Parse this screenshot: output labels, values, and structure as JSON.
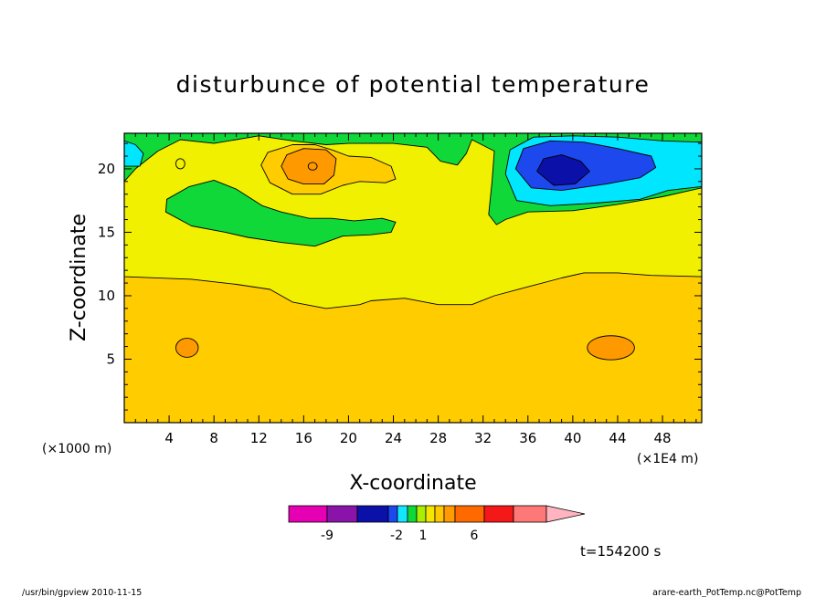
{
  "chart_data": {
    "type": "heatmap",
    "title": "disturbunce of potential temperature",
    "xlabel": "X-coordinate",
    "ylabel": "Z-coordinate",
    "x_unit_left": "(×1000 m)",
    "x_unit_right": "(×1E4 m)",
    "xlim": [
      0,
      51.5
    ],
    "ylim": [
      0,
      22.8
    ],
    "xticks": [
      4,
      8,
      12,
      16,
      20,
      24,
      28,
      32,
      36,
      40,
      44,
      48
    ],
    "yticks": [
      5,
      10,
      15,
      20
    ],
    "time_label": "t=154200 s",
    "colorbar": {
      "colors": [
        "#e600b4",
        "#8a14aa",
        "#0a10a8",
        "#1c48ee",
        "#14e6ff",
        "#10d838",
        "#a8f000",
        "#f4e600",
        "#ffc800",
        "#ff9a00",
        "#ff6a00",
        "#f41818",
        "#ff7878",
        "#ffb4c0"
      ],
      "tick_labels": [
        "-9",
        "-2",
        "1",
        "6"
      ]
    },
    "regions": [
      {
        "level": "background",
        "color": "#ffcc00"
      },
      {
        "level": "1-2",
        "color": "#f0f000",
        "polygon": [
          [
            0,
            11.5
          ],
          [
            6,
            11.3
          ],
          [
            10,
            10.9
          ],
          [
            13,
            10.5
          ],
          [
            15,
            9.5
          ],
          [
            18,
            9
          ],
          [
            21,
            9.3
          ],
          [
            22,
            9.6
          ],
          [
            25,
            9.8
          ],
          [
            28,
            9.3
          ],
          [
            31,
            9.3
          ],
          [
            33,
            10
          ],
          [
            36,
            10.7
          ],
          [
            39,
            11.4
          ],
          [
            41,
            11.8
          ],
          [
            44,
            11.8
          ],
          [
            47,
            11.6
          ],
          [
            51.5,
            11.5
          ],
          [
            51.5,
            22.8
          ],
          [
            0,
            22.8
          ]
        ]
      },
      {
        "level": "0-1",
        "color": "#10d838",
        "polygon": [
          [
            0,
            22.8
          ],
          [
            51.5,
            22.8
          ],
          [
            51.5,
            18.5
          ],
          [
            48,
            17.8
          ],
          [
            44,
            17.2
          ],
          [
            40,
            16.7
          ],
          [
            36,
            16.6
          ],
          [
            34,
            16
          ],
          [
            33.2,
            15.6
          ],
          [
            32.5,
            16.4
          ],
          [
            32.8,
            19
          ],
          [
            33,
            21.4
          ],
          [
            31,
            22.3
          ],
          [
            30.5,
            21.2
          ],
          [
            29.7,
            20.3
          ],
          [
            28.2,
            20.6
          ],
          [
            27,
            21.7
          ],
          [
            24,
            22
          ],
          [
            20,
            22
          ],
          [
            18,
            21.9
          ],
          [
            15,
            22.2
          ],
          [
            12,
            22.6
          ],
          [
            8,
            22
          ],
          [
            5,
            22.3
          ],
          [
            3,
            21.4
          ],
          [
            1,
            20
          ],
          [
            0,
            19
          ]
        ]
      },
      {
        "level": "0-1",
        "color": "#10d838",
        "polygon": [
          [
            3.7,
            16.6
          ],
          [
            3.8,
            17.6
          ],
          [
            5.8,
            18.6
          ],
          [
            8,
            19.1
          ],
          [
            10,
            18.4
          ],
          [
            12.3,
            17.1
          ],
          [
            14,
            16.6
          ],
          [
            16.5,
            16.1
          ],
          [
            18.5,
            16.1
          ],
          [
            20.5,
            15.9
          ],
          [
            23,
            16.1
          ],
          [
            24.2,
            15.8
          ],
          [
            23.8,
            15
          ],
          [
            22,
            14.8
          ],
          [
            19.5,
            14.7
          ],
          [
            17,
            13.9
          ],
          [
            14,
            14.2
          ],
          [
            11,
            14.6
          ],
          [
            9,
            15
          ],
          [
            6,
            15.5
          ]
        ]
      },
      {
        "level": "3-4",
        "color": "#ffcc00",
        "polygon": [
          [
            12.2,
            20.3
          ],
          [
            12.8,
            21.3
          ],
          [
            15,
            21.9
          ],
          [
            17,
            21.9
          ],
          [
            18.5,
            21.5
          ],
          [
            20,
            21
          ],
          [
            22,
            20.9
          ],
          [
            23.8,
            20.2
          ],
          [
            24.2,
            19.2
          ],
          [
            23.3,
            18.9
          ],
          [
            21,
            19
          ],
          [
            19.5,
            18.7
          ],
          [
            17.5,
            18
          ],
          [
            15,
            18
          ],
          [
            13,
            18.9
          ]
        ]
      },
      {
        "level": "4-5",
        "color": "#ff9900",
        "polygon": [
          [
            14,
            20.2
          ],
          [
            14.5,
            21.1
          ],
          [
            16,
            21.6
          ],
          [
            18,
            21.5
          ],
          [
            18.9,
            20.8
          ],
          [
            18.7,
            19.5
          ],
          [
            17.8,
            18.8
          ],
          [
            16,
            18.8
          ],
          [
            14.6,
            19.2
          ]
        ]
      },
      {
        "level": "4-5",
        "color": "#ff9900",
        "ellipse": [
          5.6,
          5.9,
          1.0,
          0.75
        ]
      },
      {
        "level": "4-5",
        "color": "#ff9900",
        "ellipse": [
          43.4,
          5.9,
          2.1,
          0.95
        ]
      },
      {
        "level": "2-3",
        "color": "#f0f000",
        "ellipse": [
          5.0,
          20.4,
          0.4,
          0.4
        ]
      },
      {
        "level": "-1-0",
        "color": "#00e6ff",
        "polygon": [
          [
            34,
            19.6
          ],
          [
            34.4,
            21.5
          ],
          [
            36.5,
            22.5
          ],
          [
            40,
            22.6
          ],
          [
            44,
            22.5
          ],
          [
            48,
            22.2
          ],
          [
            51.5,
            22.1
          ],
          [
            51.5,
            18.6
          ],
          [
            48.5,
            18.3
          ],
          [
            46,
            17.6
          ],
          [
            42,
            17.3
          ],
          [
            38,
            17.1
          ],
          [
            35,
            17.5
          ]
        ]
      },
      {
        "level": "-1-0",
        "color": "#00e6ff",
        "polygon": [
          [
            0,
            20.2
          ],
          [
            1.4,
            20.2
          ],
          [
            1.7,
            21.2
          ],
          [
            1,
            21.9
          ],
          [
            0,
            22.2
          ]
        ]
      },
      {
        "level": "-2--1",
        "color": "#1c48ee",
        "polygon": [
          [
            34.9,
            20
          ],
          [
            35.6,
            21.6
          ],
          [
            38,
            22.2
          ],
          [
            41,
            22.1
          ],
          [
            44,
            21.6
          ],
          [
            47,
            21
          ],
          [
            47.4,
            20.1
          ],
          [
            46,
            19.3
          ],
          [
            43,
            18.8
          ],
          [
            39,
            18.3
          ],
          [
            36.3,
            18.5
          ]
        ]
      },
      {
        "level": "-3--2",
        "color": "#0a10a8",
        "polygon": [
          [
            36.8,
            19.8
          ],
          [
            37.4,
            20.8
          ],
          [
            39,
            21.1
          ],
          [
            40.7,
            20.6
          ],
          [
            41.5,
            19.8
          ],
          [
            40.2,
            18.8
          ],
          [
            38.3,
            18.7
          ]
        ]
      },
      {
        "level": "4-5",
        "color": "#ff9900",
        "ellipse": [
          16.8,
          20.2,
          0.4,
          0.3
        ]
      }
    ]
  },
  "footer": {
    "left": "/usr/bin/gpview   2010-11-15",
    "right": "arare-earth_PotTemp.nc@PotTemp"
  }
}
